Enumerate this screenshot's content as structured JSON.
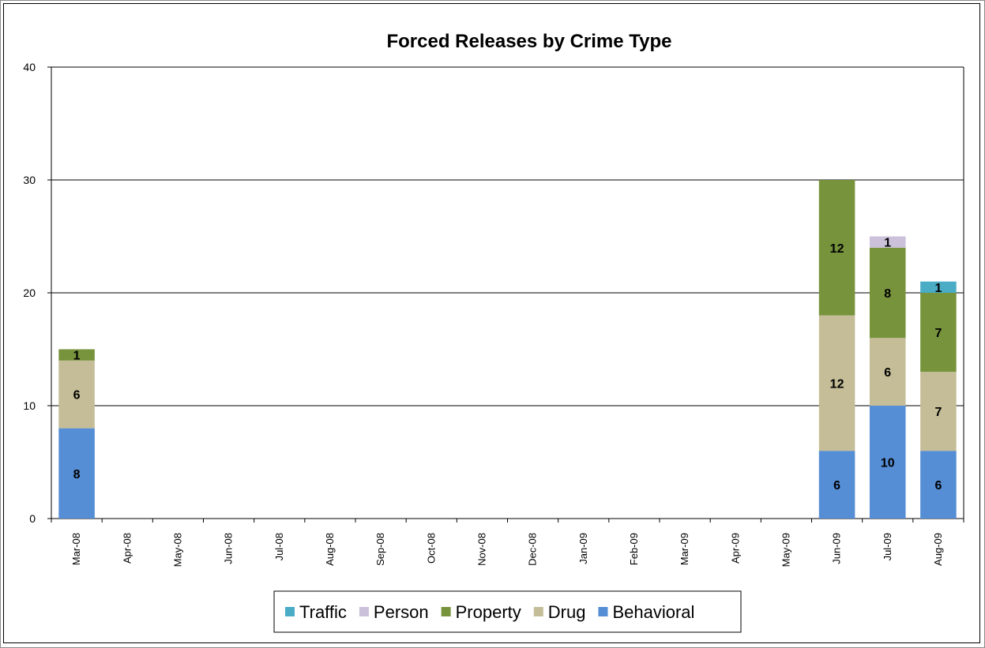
{
  "chart_data": {
    "type": "bar",
    "stacked": true,
    "title": "Forced Releases by Crime Type",
    "xlabel": "",
    "ylabel": "",
    "ylim": [
      0,
      40
    ],
    "yticks": [
      "0",
      "10",
      "20",
      "30",
      "40"
    ],
    "grid": "horizontal",
    "legend_position": "bottom",
    "categories": [
      "Mar-08",
      "Apr-08",
      "May-08",
      "Jun-08",
      "Jul-08",
      "Aug-08",
      "Sep-08",
      "Oct-08",
      "Nov-08",
      "Dec-08",
      "Jan-09",
      "Feb-09",
      "Mar-09",
      "Apr-09",
      "May-09",
      "Jun-09",
      "Jul-09",
      "Aug-09"
    ],
    "series": [
      {
        "name": "Behavioral",
        "color": "#558ed5",
        "values": [
          8,
          0,
          0,
          0,
          0,
          0,
          0,
          0,
          0,
          0,
          0,
          0,
          0,
          0,
          0,
          6,
          10,
          6
        ]
      },
      {
        "name": "Drug",
        "color": "#c4bd97",
        "values": [
          6,
          0,
          0,
          0,
          0,
          0,
          0,
          0,
          0,
          0,
          0,
          0,
          0,
          0,
          0,
          12,
          6,
          7
        ]
      },
      {
        "name": "Property",
        "color": "#77933c",
        "values": [
          1,
          0,
          0,
          0,
          0,
          0,
          0,
          0,
          0,
          0,
          0,
          0,
          0,
          0,
          0,
          12,
          8,
          7
        ]
      },
      {
        "name": "Person",
        "color": "#ccc1da",
        "values": [
          0,
          0,
          0,
          0,
          0,
          0,
          0,
          0,
          0,
          0,
          0,
          0,
          0,
          0,
          0,
          0,
          1,
          0
        ]
      },
      {
        "name": "Traffic",
        "color": "#4bacc6",
        "values": [
          0,
          0,
          0,
          0,
          0,
          0,
          0,
          0,
          0,
          0,
          0,
          0,
          0,
          0,
          0,
          0,
          0,
          1
        ]
      }
    ],
    "legend_order": [
      "Traffic",
      "Person",
      "Property",
      "Drug",
      "Behavioral"
    ]
  }
}
